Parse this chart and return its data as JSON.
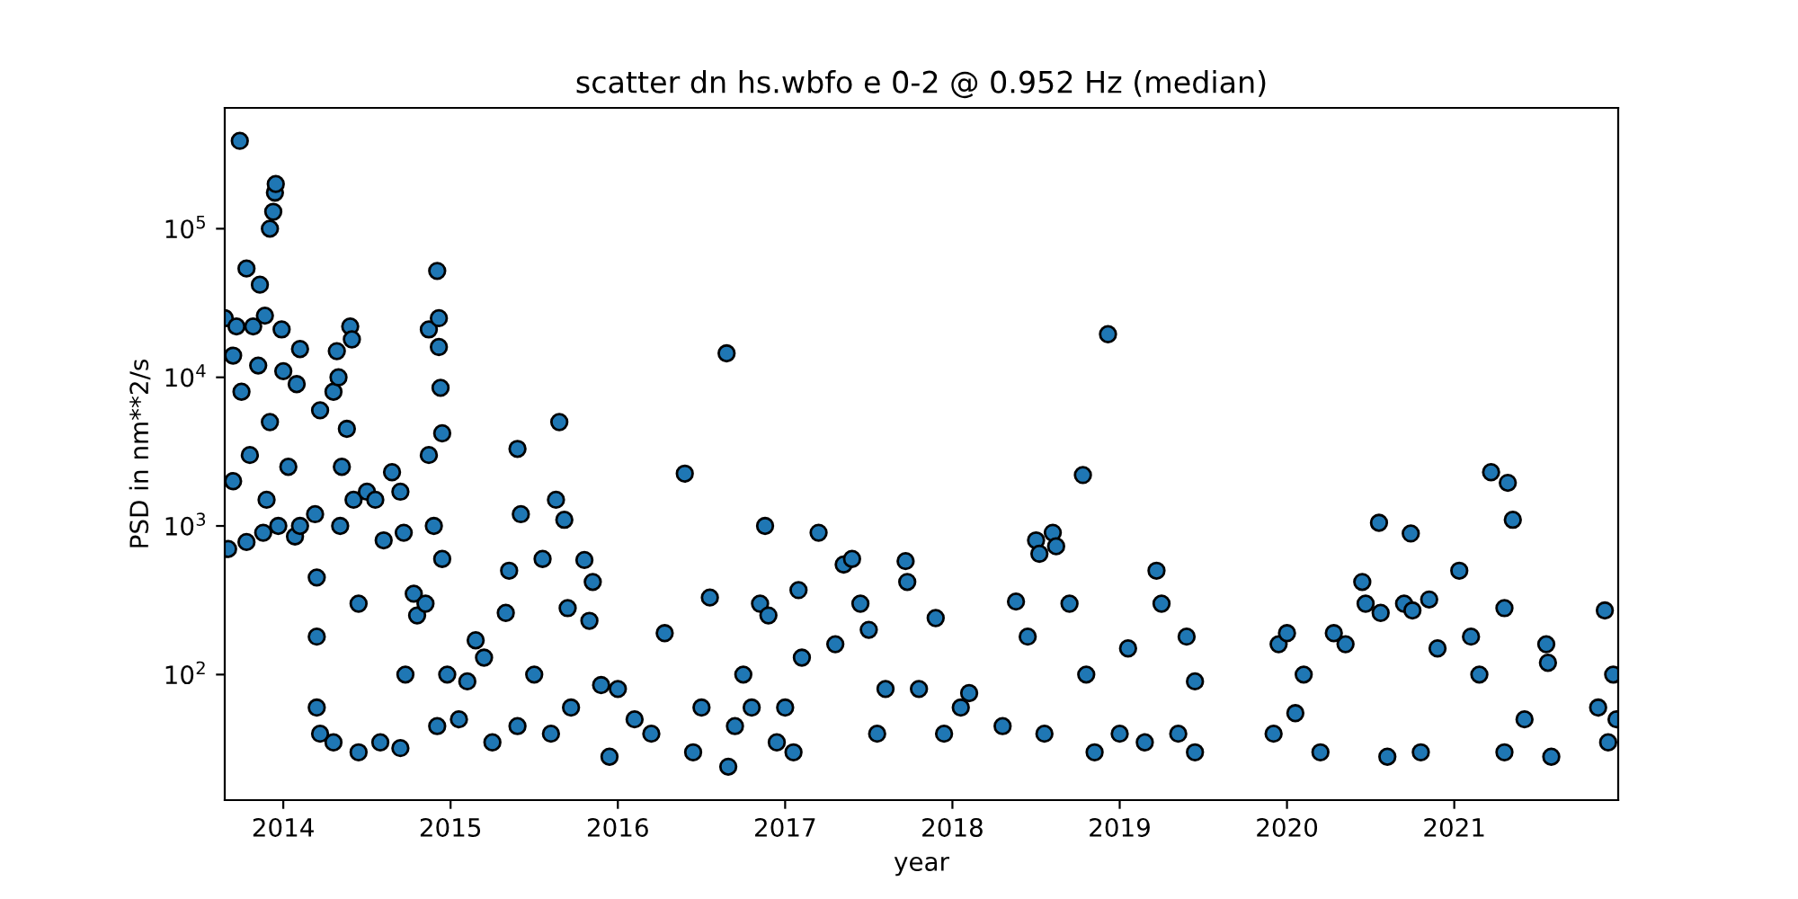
{
  "chart_data": {
    "type": "scatter",
    "title": "scatter dn hs.wbfo e 0-2 @ 0.952 Hz (median)",
    "xlabel": "year",
    "ylabel": "PSD in nm**2/s",
    "log": "y",
    "marker": "circle",
    "grid": false,
    "xlim": [
      2013.65,
      2021.98
    ],
    "xticks": [
      2014,
      2015,
      2016,
      2017,
      2018,
      2019,
      2020,
      2021
    ],
    "ylim": [
      14.3,
      650000
    ],
    "yticks": [
      {
        "value": 100,
        "label": "10$^{2}$"
      },
      {
        "value": 1000,
        "label": "10$^{3}$"
      },
      {
        "value": 10000,
        "label": "10$^{4}$"
      },
      {
        "value": 100000,
        "label": "10$^{5}$"
      }
    ],
    "series": [
      {
        "color": "#1f77b4",
        "x": [
          2013.74,
          2013.78,
          2013.86,
          2013.89,
          2013.92,
          2013.94,
          2013.95,
          2013.955,
          2013.99,
          2014.1,
          2013.65,
          2013.72,
          2013.82,
          2013.67,
          2013.7,
          2013.75,
          2013.78,
          2013.8,
          2013.85,
          2013.88,
          2013.92,
          2013.97,
          2014.0,
          2014.03,
          2014.07,
          2014.08,
          2014.1,
          2013.7,
          2013.9,
          2014.19,
          2014.2,
          2014.22,
          2014.2,
          2014.2,
          2014.22,
          2014.3,
          2014.32,
          2014.33,
          2014.35,
          2014.34,
          2014.3,
          2014.4,
          2014.41,
          2014.38,
          2014.42,
          2014.45,
          2014.45,
          2014.5,
          2014.55,
          2014.58,
          2014.6,
          2014.65,
          2014.7,
          2014.72,
          2014.7,
          2014.73,
          2014.78,
          2014.8,
          2014.85,
          2014.87,
          2014.87,
          2014.9,
          2014.92,
          2014.93,
          2014.93,
          2014.94,
          2014.95,
          2014.95,
          2014.92,
          2014.98,
          2015.05,
          2015.1,
          2015.15,
          2015.2,
          2015.25,
          2015.33,
          2015.35,
          2015.4,
          2015.42,
          2015.4,
          2015.5,
          2015.55,
          2015.6,
          2015.63,
          2015.65,
          2015.68,
          2015.7,
          2015.72,
          2015.8,
          2015.83,
          2015.85,
          2015.9,
          2015.95,
          2016.0,
          2016.1,
          2016.2,
          2016.28,
          2016.4,
          2016.45,
          2016.5,
          2016.55,
          2016.65,
          2016.66,
          2016.7,
          2016.75,
          2016.8,
          2016.85,
          2016.88,
          2016.9,
          2016.95,
          2017.0,
          2017.05,
          2017.08,
          2017.1,
          2017.2,
          2017.3,
          2017.35,
          2017.4,
          2017.45,
          2017.5,
          2017.55,
          2017.6,
          2017.72,
          2017.73,
          2017.8,
          2017.9,
          2017.95,
          2018.05,
          2018.1,
          2018.3,
          2018.38,
          2018.45,
          2018.5,
          2018.52,
          2018.55,
          2018.6,
          2018.62,
          2018.7,
          2018.78,
          2018.8,
          2018.85,
          2018.93,
          2019.0,
          2019.05,
          2019.15,
          2019.22,
          2019.25,
          2019.35,
          2019.4,
          2019.45,
          2019.45,
          2019.92,
          2019.95,
          2020.0,
          2020.05,
          2020.1,
          2020.2,
          2020.28,
          2020.35,
          2020.45,
          2020.47,
          2020.55,
          2020.56,
          2020.6,
          2020.7,
          2020.74,
          2020.75,
          2020.8,
          2020.85,
          2020.9,
          2021.03,
          2021.1,
          2021.15,
          2021.22,
          2021.3,
          2021.32,
          2021.35,
          2021.3,
          2021.42,
          2021.55,
          2021.58,
          2021.56,
          2021.86,
          2021.9,
          2021.92,
          2021.95,
          2021.97
        ],
        "values": [
          390000,
          54000,
          42000,
          26000,
          100000,
          130000,
          175000,
          200000,
          21000,
          15500,
          25000,
          22000,
          22000,
          700,
          2000,
          8000,
          780,
          3000,
          12000,
          900,
          5000,
          1000,
          11000,
          2500,
          850,
          9000,
          1000,
          14000,
          1500,
          1200,
          450,
          6000,
          60,
          180,
          40,
          8000,
          15000,
          10000,
          2500,
          1000,
          35,
          22000,
          18000,
          4500,
          1500,
          300,
          30,
          1700,
          1500,
          35,
          800,
          2300,
          1700,
          900,
          32,
          100,
          350,
          250,
          300,
          3000,
          21000,
          1000,
          52000,
          25000,
          16000,
          8500,
          4200,
          600,
          45,
          100,
          50,
          90,
          170,
          130,
          35,
          260,
          500,
          3300,
          1200,
          45,
          100,
          600,
          40,
          1500,
          5000,
          1100,
          280,
          60,
          590,
          230,
          420,
          85,
          28,
          80,
          50,
          40,
          190,
          2250,
          30,
          60,
          330,
          14500,
          24,
          45,
          100,
          60,
          300,
          1000,
          250,
          35,
          60,
          30,
          370,
          130,
          900,
          160,
          550,
          600,
          300,
          200,
          40,
          80,
          580,
          420,
          80,
          240,
          40,
          60,
          75,
          45,
          310,
          180,
          800,
          650,
          40,
          900,
          730,
          300,
          2200,
          100,
          30,
          19500,
          40,
          150,
          35,
          500,
          300,
          40,
          180,
          90,
          30,
          40,
          160,
          190,
          55,
          100,
          30,
          190,
          160,
          420,
          300,
          1050,
          260,
          28,
          300,
          890,
          270,
          30,
          320,
          150,
          500,
          180,
          100,
          2300,
          30,
          1950,
          1100,
          280,
          50,
          160,
          28,
          120,
          60,
          270,
          35,
          100,
          50
        ]
      }
    ]
  }
}
